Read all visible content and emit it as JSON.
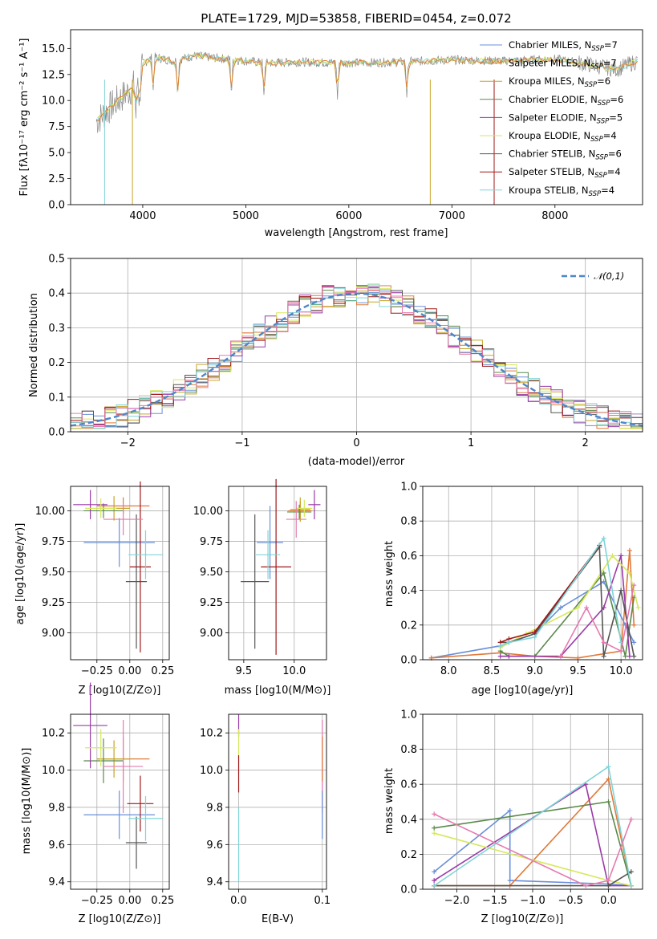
{
  "colors": {
    "chabrier_miles": "#6a8fd8",
    "salpeter_miles": "#e07a3a",
    "kroupa_miles": "#c9a227",
    "chabrier_elodie": "#5a8a4a",
    "salpeter_elodie": "#9a3aa8",
    "kroupa_elodie": "#d6e85a",
    "chabrier_stelib": "#555555",
    "salpeter_stelib": "#a01818",
    "kroupa_stelib": "#7fd4d8",
    "pink": "#e67ab0",
    "gray": "#888888",
    "gauss": "#4e86c9"
  },
  "chart_data": [
    {
      "type": "line",
      "panel": "spectrum",
      "title": "PLATE=1729, MJD=53858, FIBERID=0454, z=0.072",
      "xlabel": "wavelength [Angstrom, rest frame]",
      "ylabel": "Flux [fλ10⁻¹⁷ erg cm⁻² s⁻¹ A⁻¹]",
      "xlim": [
        3300,
        8850
      ],
      "ylim": [
        0,
        16.8
      ],
      "xticks": [
        4000,
        5000,
        6000,
        7000,
        8000
      ],
      "yticks": [
        0.0,
        2.5,
        5.0,
        7.5,
        10.0,
        12.5,
        15.0
      ],
      "legend_position": "right",
      "series": [
        {
          "name": "Chabrier MILES, N_SSP=7"
        },
        {
          "name": "Salpeter MILES, N_SSP=7"
        },
        {
          "name": "Kroupa MILES, N_SSP=6"
        },
        {
          "name": "Chabrier ELODIE, N_SSP=6"
        },
        {
          "name": "Salpeter ELODIE, N_SSP=5"
        },
        {
          "name": "Kroupa ELODIE, N_SSP=4"
        },
        {
          "name": "Chabrier STELIB, N_SSP=6"
        },
        {
          "name": "Salpeter STELIB, N_SSP=4"
        },
        {
          "name": "Kroupa STELIB, N_SSP=4"
        }
      ],
      "continuum": {
        "x": [
          3550,
          3700,
          3900,
          4000,
          4100,
          4300,
          4500,
          4800,
          5200,
          5500,
          6000,
          6500,
          7000,
          7500,
          7800,
          8000,
          8300,
          8600,
          8800
        ],
        "y": [
          8.0,
          9.5,
          11.2,
          13.5,
          14.2,
          13.8,
          14.3,
          14.0,
          13.6,
          13.7,
          13.6,
          13.7,
          13.9,
          13.8,
          13.9,
          14.0,
          13.5,
          13.0,
          13.8
        ]
      }
    },
    {
      "type": "bar",
      "panel": "residual-histogram",
      "xlabel": "(data-model)/error",
      "ylabel": "Normed distribution",
      "xlim": [
        -2.5,
        2.5
      ],
      "ylim": [
        0,
        0.5
      ],
      "xticks": [
        -2,
        -1,
        0,
        1,
        2
      ],
      "yticks": [
        0.0,
        0.1,
        0.2,
        0.3,
        0.4,
        0.5
      ],
      "gauss_label": "𝒩(0,1)",
      "bin_width": 0.1
    },
    {
      "type": "scatter",
      "panel": "age-vs-Z",
      "xlabel": "Z [log10(Z/Z⊙)]",
      "ylabel": "age  [log10(age/yr)]",
      "xlim": [
        -0.45,
        0.3
      ],
      "ylim": [
        8.78,
        10.2
      ],
      "xticks": [
        -0.25,
        0.0,
        0.25
      ],
      "yticks": [
        9.0,
        9.25,
        9.5,
        9.75,
        10.0
      ],
      "points": [
        {
          "x": -0.08,
          "y": 9.74,
          "xerr": 0.27,
          "yerr": 0.2,
          "color": "#6a8fd8"
        },
        {
          "x": -0.05,
          "y": 10.04,
          "xerr": 0.2,
          "yerr": 0.07,
          "color": "#e07a3a"
        },
        {
          "x": -0.12,
          "y": 10.02,
          "xerr": 0.12,
          "yerr": 0.1,
          "color": "#c9a227"
        },
        {
          "x": -0.2,
          "y": 10.0,
          "xerr": 0.15,
          "yerr": 0.06,
          "color": "#5a8a4a"
        },
        {
          "x": -0.3,
          "y": 10.05,
          "xerr": 0.13,
          "yerr": 0.12,
          "color": "#9a3aa8"
        },
        {
          "x": -0.22,
          "y": 10.02,
          "xerr": 0.12,
          "yerr": 0.08,
          "color": "#d6e85a"
        },
        {
          "x": 0.05,
          "y": 9.42,
          "xerr": 0.08,
          "yerr": 0.55,
          "color": "#555555"
        },
        {
          "x": 0.08,
          "y": 9.54,
          "xerr": 0.08,
          "yerr": 0.7,
          "color": "#a01818"
        },
        {
          "x": 0.12,
          "y": 9.64,
          "xerr": 0.13,
          "yerr": 0.2,
          "color": "#7fd4d8"
        },
        {
          "x": -0.05,
          "y": 9.93,
          "xerr": 0.15,
          "yerr": 0.13,
          "color": "#e67ab0"
        }
      ]
    },
    {
      "type": "scatter",
      "panel": "age-vs-mass",
      "xlabel": "mass [log10(M/M⊙)]",
      "ylabel": "",
      "xlim": [
        9.35,
        10.32
      ],
      "ylim": [
        8.78,
        10.2
      ],
      "xticks": [
        9.5,
        10.0
      ],
      "yticks": [
        9.0,
        9.25,
        9.5,
        9.75,
        10.0
      ],
      "points": [
        {
          "x": 9.76,
          "y": 9.74,
          "xerr": 0.13,
          "yerr": 0.3,
          "color": "#6a8fd8"
        },
        {
          "x": 10.06,
          "y": 10.0,
          "xerr": 0.12,
          "yerr": 0.08,
          "color": "#e07a3a"
        },
        {
          "x": 10.06,
          "y": 10.01,
          "xerr": 0.1,
          "yerr": 0.1,
          "color": "#c9a227"
        },
        {
          "x": 10.05,
          "y": 9.99,
          "xerr": 0.12,
          "yerr": 0.06,
          "color": "#5a8a4a"
        },
        {
          "x": 10.2,
          "y": 10.05,
          "xerr": 0.06,
          "yerr": 0.12,
          "color": "#9a3aa8"
        },
        {
          "x": 10.1,
          "y": 10.02,
          "xerr": 0.08,
          "yerr": 0.07,
          "color": "#d6e85a"
        },
        {
          "x": 9.61,
          "y": 9.42,
          "xerr": 0.14,
          "yerr": 0.55,
          "color": "#555555"
        },
        {
          "x": 9.82,
          "y": 9.54,
          "xerr": 0.15,
          "yerr": 0.72,
          "color": "#a01818"
        },
        {
          "x": 9.74,
          "y": 9.64,
          "xerr": 0.12,
          "yerr": 0.2,
          "color": "#7fd4d8"
        },
        {
          "x": 10.02,
          "y": 9.93,
          "xerr": 0.1,
          "yerr": 0.15,
          "color": "#e67ab0"
        }
      ]
    },
    {
      "type": "line",
      "panel": "mass-weight-vs-age",
      "xlabel": "age  [log10(age/yr)]",
      "ylabel": "mass weight",
      "xlim": [
        7.7,
        10.25
      ],
      "ylim": [
        0,
        1.0
      ],
      "xticks": [
        8.0,
        8.5,
        9.0,
        9.5,
        10.0
      ],
      "yticks": [
        0.0,
        0.2,
        0.4,
        0.6,
        0.8,
        1.0
      ],
      "series": [
        {
          "color": "#6a8fd8",
          "x": [
            7.8,
            8.6,
            9.0,
            9.3,
            9.8,
            10.05,
            10.15
          ],
          "y": [
            0.01,
            0.08,
            0.15,
            0.3,
            0.45,
            0.2,
            0.1
          ]
        },
        {
          "color": "#e07a3a",
          "x": [
            7.8,
            8.6,
            9.0,
            9.5,
            10.0,
            10.1,
            10.15
          ],
          "y": [
            0.01,
            0.04,
            0.02,
            0.01,
            0.05,
            0.63,
            0.2
          ]
        },
        {
          "color": "#5a8a4a",
          "x": [
            8.6,
            8.7,
            9.0,
            9.8,
            10.05,
            10.15
          ],
          "y": [
            0.05,
            0.02,
            0.02,
            0.5,
            0.02,
            0.36
          ]
        },
        {
          "color": "#9a3aa8",
          "x": [
            8.6,
            8.7,
            9.3,
            9.8,
            10.0,
            10.1
          ],
          "y": [
            0.02,
            0.02,
            0.02,
            0.3,
            0.6,
            0.02
          ]
        },
        {
          "color": "#d6e85a",
          "x": [
            8.6,
            8.9,
            9.5,
            9.9,
            10.1,
            10.2
          ],
          "y": [
            0.07,
            0.15,
            0.3,
            0.6,
            0.5,
            0.3
          ]
        },
        {
          "color": "#555555",
          "x": [
            8.6,
            8.7,
            9.0,
            9.75,
            9.8,
            10.0,
            10.15
          ],
          "y": [
            0.1,
            0.1,
            0.15,
            0.65,
            0.02,
            0.4,
            0.02
          ]
        },
        {
          "color": "#a01818",
          "x": [
            8.6,
            8.7,
            9.0,
            9.75
          ],
          "y": [
            0.1,
            0.12,
            0.16,
            0.66
          ]
        },
        {
          "color": "#7fd4d8",
          "x": [
            8.6,
            8.7,
            9.0,
            9.8,
            10.0
          ],
          "y": [
            0.08,
            0.1,
            0.13,
            0.7,
            0.1
          ]
        },
        {
          "color": "#e67ab0",
          "x": [
            9.3,
            9.6,
            9.8,
            10.0,
            10.15
          ],
          "y": [
            0.02,
            0.3,
            0.1,
            0.05,
            0.43
          ]
        }
      ]
    },
    {
      "type": "scatter",
      "panel": "mass-vs-Z",
      "xlabel": "Z [log10(Z/Z⊙)]",
      "ylabel": "mass [log10(M/M⊙)]",
      "xlim": [
        -0.45,
        0.3
      ],
      "ylim": [
        9.36,
        10.3
      ],
      "xticks": [
        -0.25,
        0.0,
        0.25
      ],
      "yticks": [
        9.4,
        9.6,
        9.8,
        10.0,
        10.2
      ],
      "points": [
        {
          "x": -0.08,
          "y": 9.76,
          "xerr": 0.27,
          "yerr": 0.13,
          "color": "#6a8fd8"
        },
        {
          "x": -0.05,
          "y": 10.06,
          "xerr": 0.2,
          "yerr": 0.12,
          "color": "#e07a3a"
        },
        {
          "x": -0.12,
          "y": 10.06,
          "xerr": 0.12,
          "yerr": 0.1,
          "color": "#c9a227"
        },
        {
          "x": -0.2,
          "y": 10.05,
          "xerr": 0.15,
          "yerr": 0.12,
          "color": "#5a8a4a"
        },
        {
          "x": -0.3,
          "y": 10.24,
          "xerr": 0.13,
          "yerr": 0.23,
          "color": "#9a3aa8"
        },
        {
          "x": -0.22,
          "y": 10.12,
          "xerr": 0.12,
          "yerr": 0.1,
          "color": "#d6e85a"
        },
        {
          "x": 0.05,
          "y": 9.61,
          "xerr": 0.08,
          "yerr": 0.14,
          "color": "#555555"
        },
        {
          "x": 0.08,
          "y": 9.82,
          "xerr": 0.1,
          "yerr": 0.15,
          "color": "#a01818"
        },
        {
          "x": 0.12,
          "y": 9.74,
          "xerr": 0.13,
          "yerr": 0.12,
          "color": "#7fd4d8"
        },
        {
          "x": -0.05,
          "y": 10.02,
          "xerr": 0.15,
          "yerr": 0.25,
          "color": "#e67ab0"
        }
      ]
    },
    {
      "type": "scatter",
      "panel": "mass-vs-ebv",
      "xlabel": "E(B-V)",
      "ylabel": "",
      "xlim": [
        -0.012,
        0.105
      ],
      "ylim": [
        9.36,
        10.3
      ],
      "xticks": [
        0.0,
        0.1
      ],
      "yticks": [
        9.4,
        9.6,
        9.8,
        10.0,
        10.2
      ],
      "points": [
        {
          "x": 0.0,
          "y": 10.24,
          "xerr": 0.0,
          "yerr": 0.06,
          "color": "#9a3aa8"
        },
        {
          "x": 0.0,
          "y": 10.1,
          "xerr": 0.0,
          "yerr": 0.12,
          "color": "#d6e85a"
        },
        {
          "x": 0.0,
          "y": 9.98,
          "xerr": 0.0,
          "yerr": 0.1,
          "color": "#a01818"
        },
        {
          "x": 0.0,
          "y": 9.6,
          "xerr": 0.0,
          "yerr": 0.2,
          "color": "#7fd4d8"
        },
        {
          "x": 0.1,
          "y": 10.02,
          "xerr": 0.0,
          "yerr": 0.25,
          "color": "#e67ab0"
        },
        {
          "x": 0.1,
          "y": 10.06,
          "xerr": 0.0,
          "yerr": 0.12,
          "color": "#e07a3a"
        },
        {
          "x": 0.1,
          "y": 9.76,
          "xerr": 0.0,
          "yerr": 0.13,
          "color": "#6a8fd8"
        }
      ]
    },
    {
      "type": "line",
      "panel": "mass-weight-vs-Z",
      "xlabel": "Z [log10(Z/Z⊙)]",
      "ylabel": "mass weight",
      "xlim": [
        -2.45,
        0.45
      ],
      "ylim": [
        0,
        1.0
      ],
      "xticks": [
        -2.0,
        -1.5,
        -1.0,
        -0.5,
        0.0
      ],
      "yticks": [
        0.0,
        0.2,
        0.4,
        0.6,
        0.8,
        1.0
      ],
      "series": [
        {
          "color": "#6a8fd8",
          "x": [
            -2.3,
            -1.3,
            -1.3,
            0.0,
            0.3
          ],
          "y": [
            0.1,
            0.45,
            0.05,
            0.03,
            0.02
          ]
        },
        {
          "color": "#e07a3a",
          "x": [
            -2.3,
            -1.3,
            0.0,
            0.3
          ],
          "y": [
            0.02,
            0.02,
            0.63,
            0.02
          ]
        },
        {
          "color": "#5a8a4a",
          "x": [
            -2.3,
            0.0,
            0.3
          ],
          "y": [
            0.35,
            0.5,
            0.02
          ]
        },
        {
          "color": "#9a3aa8",
          "x": [
            -2.3,
            -0.3,
            0.0,
            0.3
          ],
          "y": [
            0.05,
            0.6,
            0.02,
            0.02
          ]
        },
        {
          "color": "#d6e85a",
          "x": [
            -2.3,
            0.0,
            0.3
          ],
          "y": [
            0.32,
            0.05,
            0.02
          ]
        },
        {
          "color": "#555555",
          "x": [
            -2.3,
            0.0,
            0.3
          ],
          "y": [
            0.02,
            0.02,
            0.1
          ]
        },
        {
          "color": "#7fd4d8",
          "x": [
            -2.3,
            0.0,
            0.3
          ],
          "y": [
            0.02,
            0.7,
            0.02
          ]
        },
        {
          "color": "#e67ab0",
          "x": [
            -2.3,
            -0.3,
            0.0,
            0.3
          ],
          "y": [
            0.43,
            0.02,
            0.05,
            0.4
          ]
        }
      ]
    }
  ]
}
